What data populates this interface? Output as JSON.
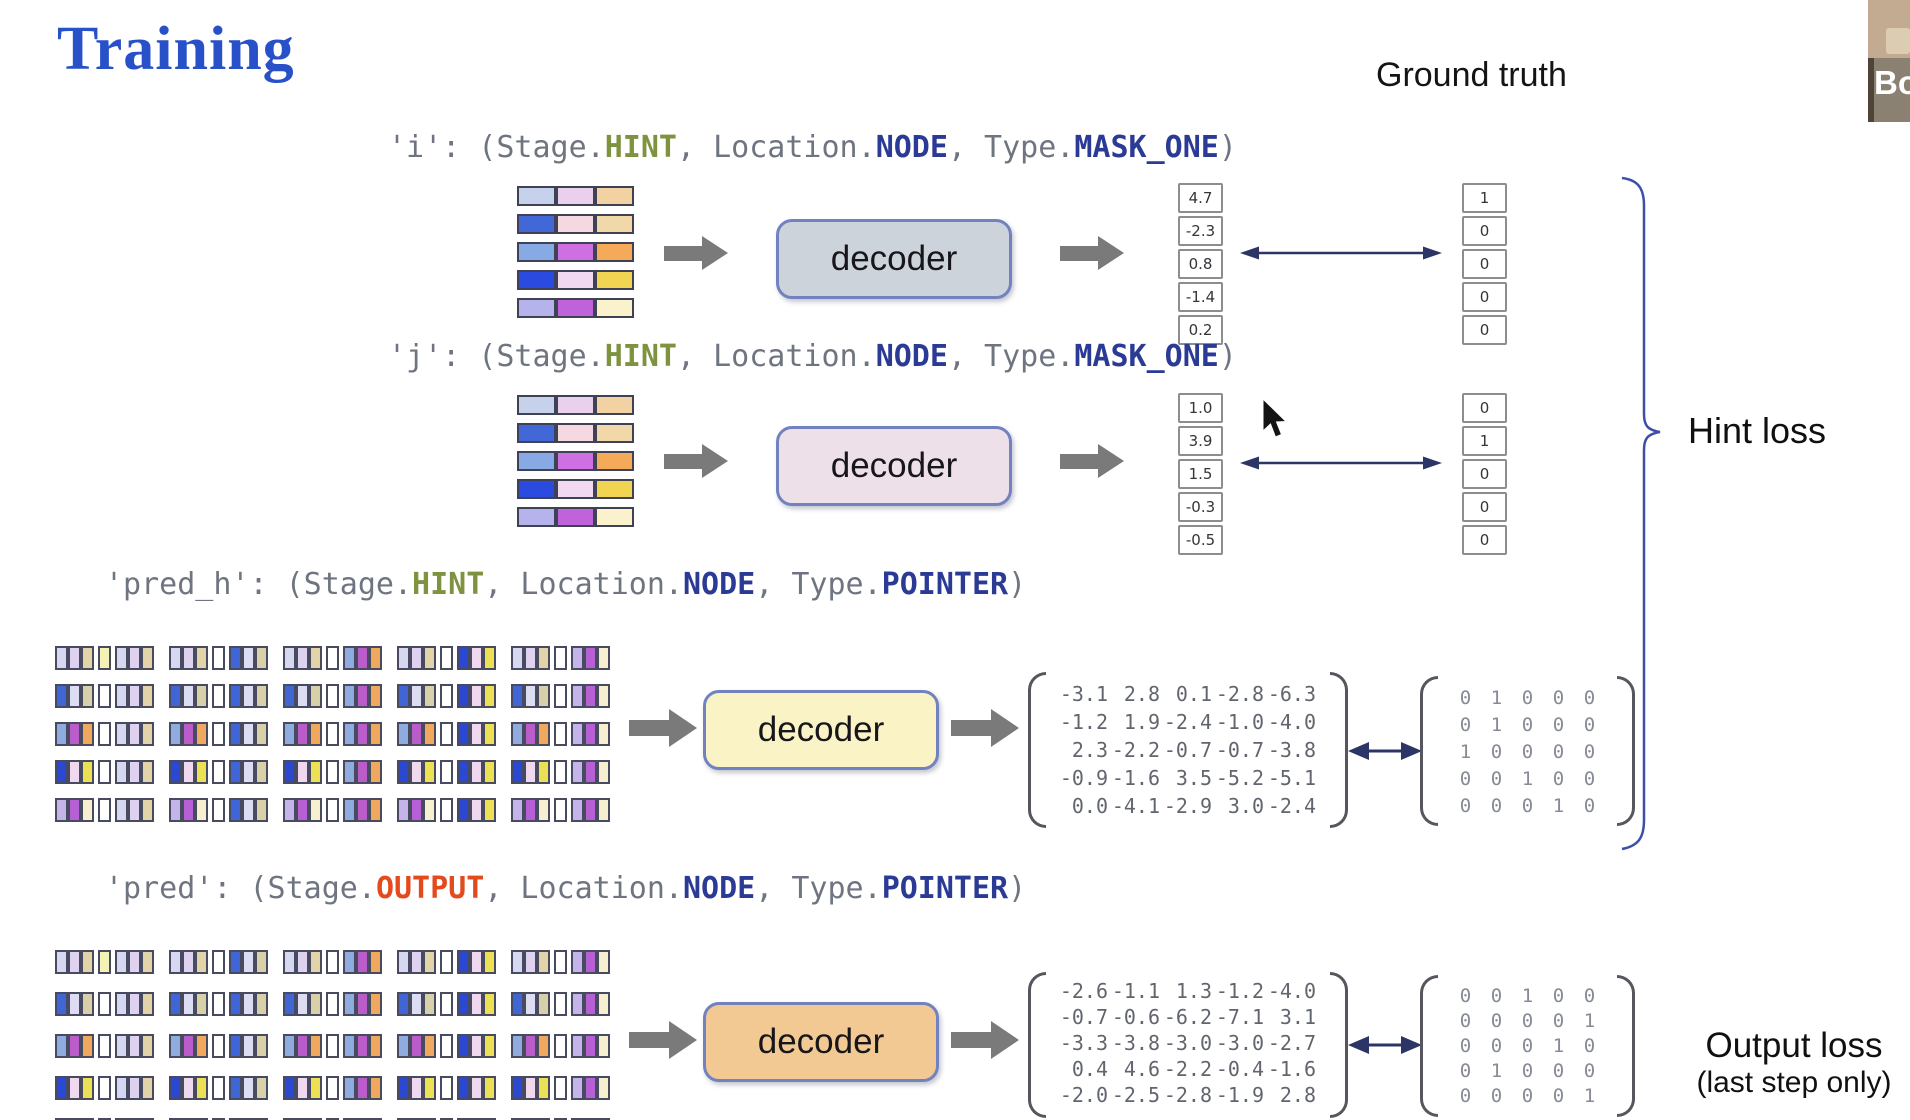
{
  "slide": {
    "title": "Training",
    "ground_truth_header": "Ground truth",
    "hint_loss_label": "Hint loss",
    "output_loss_label": "Output loss",
    "output_loss_note": "(last step only)",
    "decoder_label": "decoder"
  },
  "webcam": {
    "name": "Bo"
  },
  "palette": {
    "title_blue": "#2851c9",
    "code_gray": "#6f7580",
    "keyword_green": "#7e9340",
    "keyword_navy": "#2b3a94",
    "keyword_red": "#e34b1e",
    "arrow_gray": "#7a7a7a",
    "arrow_navy": "#2b3566",
    "brace_blue": "#3d4fa8",
    "mid_highlight": "#f4f2b4",
    "cell_white": "#ffffff"
  },
  "bars": [
    [
      "#c6d2ec",
      "#ead0ec",
      "#f2d2a2"
    ],
    [
      "#4268d8",
      "#f6d8e0",
      "#f0d8a8"
    ],
    [
      "#88aae4",
      "#cf70e2",
      "#f4aa58"
    ],
    [
      "#2a4ae0",
      "#f2d8f0",
      "#f0d452"
    ],
    [
      "#b6b2ec",
      "#c062da",
      "#faf2cc"
    ]
  ],
  "node_features": [
    [
      "#d6d8f2",
      "#ded2f0",
      "#e2d4a8"
    ],
    [
      "#4066d6",
      "#dcdcf2",
      "#d8d0a8"
    ],
    [
      "#90acde",
      "#bb5ccb",
      "#f0a85e"
    ],
    [
      "#2a48d0",
      "#f0d8ee",
      "#ece054"
    ],
    [
      "#c4b4ea",
      "#b75fd4",
      "#f6f0d0"
    ]
  ],
  "middle_highlight": [
    0,
    0
  ],
  "sections": [
    {
      "key": "i",
      "label_parts": [
        {
          "text": "'i': (Stage.",
          "style": "g"
        },
        {
          "text": "HINT",
          "style": "green"
        },
        {
          "text": ", Location.",
          "style": "g"
        },
        {
          "text": "NODE",
          "style": "navy"
        },
        {
          "text": ", Type.",
          "style": "g"
        },
        {
          "text": "MASK_ONE",
          "style": "navy"
        },
        {
          "text": ")",
          "style": "g"
        }
      ],
      "decoder_fill": "#cdd3da",
      "pred_vector": [
        "4.7",
        "-2.3",
        "0.8",
        "-1.4",
        "0.2"
      ],
      "gt_vector": [
        "1",
        "0",
        "0",
        "0",
        "0"
      ]
    },
    {
      "key": "j",
      "label_parts": [
        {
          "text": "'j': (Stage.",
          "style": "g"
        },
        {
          "text": "HINT",
          "style": "green"
        },
        {
          "text": ", Location.",
          "style": "g"
        },
        {
          "text": "NODE",
          "style": "navy"
        },
        {
          "text": ", Type.",
          "style": "g"
        },
        {
          "text": "MASK_ONE",
          "style": "navy"
        },
        {
          "text": ")",
          "style": "g"
        }
      ],
      "decoder_fill": "#eee0e8",
      "pred_vector": [
        "1.0",
        "3.9",
        "1.5",
        "-0.3",
        "-0.5"
      ],
      "gt_vector": [
        "0",
        "1",
        "0",
        "0",
        "0"
      ]
    },
    {
      "key": "pred_h",
      "label_parts": [
        {
          "text": "'pred_h': (Stage.",
          "style": "g"
        },
        {
          "text": "HINT",
          "style": "green"
        },
        {
          "text": ", Location.",
          "style": "g"
        },
        {
          "text": "NODE",
          "style": "navy"
        },
        {
          "text": ", Type.",
          "style": "g"
        },
        {
          "text": "POINTER",
          "style": "navy"
        },
        {
          "text": ")",
          "style": "g"
        }
      ],
      "decoder_fill": "#faf3c6",
      "pred_matrix": [
        [
          "-3.1",
          "2.8",
          "0.1",
          "-2.8",
          "-6.3"
        ],
        [
          "-1.2",
          "1.9",
          "-2.4",
          "-1.0",
          "-4.0"
        ],
        [
          "2.3",
          "-2.2",
          "-0.7",
          "-0.7",
          "-3.8"
        ],
        [
          "-0.9",
          "-1.6",
          "3.5",
          "-5.2",
          "-5.1"
        ],
        [
          "0.0",
          "-4.1",
          "-2.9",
          "3.0",
          "-2.4"
        ]
      ],
      "gt_matrix": [
        [
          "0",
          "1",
          "0",
          "0",
          "0"
        ],
        [
          "0",
          "1",
          "0",
          "0",
          "0"
        ],
        [
          "1",
          "0",
          "0",
          "0",
          "0"
        ],
        [
          "0",
          "0",
          "1",
          "0",
          "0"
        ],
        [
          "0",
          "0",
          "0",
          "1",
          "0"
        ]
      ]
    },
    {
      "key": "pred",
      "label_parts": [
        {
          "text": "'pred': (Stage.",
          "style": "g"
        },
        {
          "text": "OUTPUT",
          "style": "red"
        },
        {
          "text": ", Location.",
          "style": "g"
        },
        {
          "text": "NODE",
          "style": "navy"
        },
        {
          "text": ", Type.",
          "style": "g"
        },
        {
          "text": "POINTER",
          "style": "navy"
        },
        {
          "text": ")",
          "style": "g"
        }
      ],
      "decoder_fill": "#f2c992",
      "pred_matrix": [
        [
          "-2.6",
          "-1.1",
          "1.3",
          "-1.2",
          "-4.0"
        ],
        [
          "-0.7",
          "-0.6",
          "-6.2",
          "-7.1",
          "3.1"
        ],
        [
          "-3.3",
          "-3.8",
          "-3.0",
          "-3.0",
          "-2.7"
        ],
        [
          "0.4",
          "4.6",
          "-2.2",
          "-0.4",
          "-1.6"
        ],
        [
          "-2.0",
          "-2.5",
          "-2.8",
          "-1.9",
          "2.8"
        ]
      ],
      "gt_matrix": [
        [
          "0",
          "0",
          "1",
          "0",
          "0"
        ],
        [
          "0",
          "0",
          "0",
          "0",
          "1"
        ],
        [
          "0",
          "0",
          "0",
          "1",
          "0"
        ],
        [
          "0",
          "1",
          "0",
          "0",
          "0"
        ],
        [
          "0",
          "0",
          "0",
          "0",
          "1"
        ]
      ]
    }
  ]
}
